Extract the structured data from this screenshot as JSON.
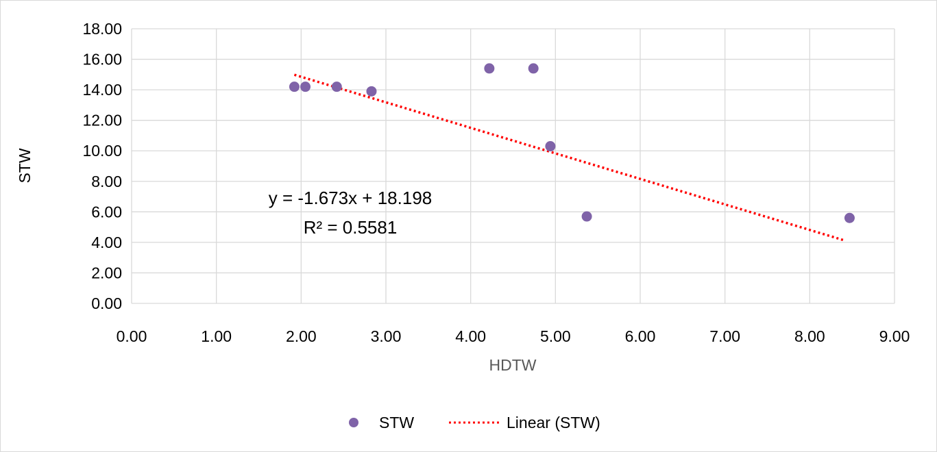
{
  "chart_data": {
    "type": "scatter",
    "title": "",
    "xlabel": "HDTW",
    "ylabel": "STW",
    "xlim": [
      0,
      9
    ],
    "ylim": [
      0,
      18
    ],
    "x_ticks": [
      "0.00",
      "1.00",
      "2.00",
      "3.00",
      "4.00",
      "5.00",
      "6.00",
      "7.00",
      "8.00",
      "9.00"
    ],
    "y_ticks": [
      "0.00",
      "2.00",
      "4.00",
      "6.00",
      "8.00",
      "10.00",
      "12.00",
      "14.00",
      "16.00",
      "18.00"
    ],
    "grid": true,
    "legend_position": "bottom",
    "series": [
      {
        "name": "STW",
        "color": "#7f63a8",
        "points": [
          {
            "x": 1.92,
            "y": 14.2
          },
          {
            "x": 2.05,
            "y": 14.2
          },
          {
            "x": 2.42,
            "y": 14.2
          },
          {
            "x": 2.83,
            "y": 13.9
          },
          {
            "x": 4.22,
            "y": 15.4
          },
          {
            "x": 4.74,
            "y": 15.4
          },
          {
            "x": 4.94,
            "y": 10.3
          },
          {
            "x": 5.37,
            "y": 5.7
          },
          {
            "x": 8.47,
            "y": 5.6
          }
        ]
      }
    ],
    "trendline": {
      "name": "Linear (STW)",
      "type": "linear",
      "slope": -1.673,
      "intercept": 18.198,
      "x_range": [
        1.92,
        8.4
      ],
      "color": "#ff0000",
      "equation_text": "y = -1.673x + 18.198",
      "r2_text": "R² = 0.5581"
    }
  },
  "legend": {
    "items": [
      {
        "label": "STW",
        "color": "#7f63a8"
      },
      {
        "label": "Linear (STW)",
        "color": "#ff0000"
      }
    ]
  }
}
